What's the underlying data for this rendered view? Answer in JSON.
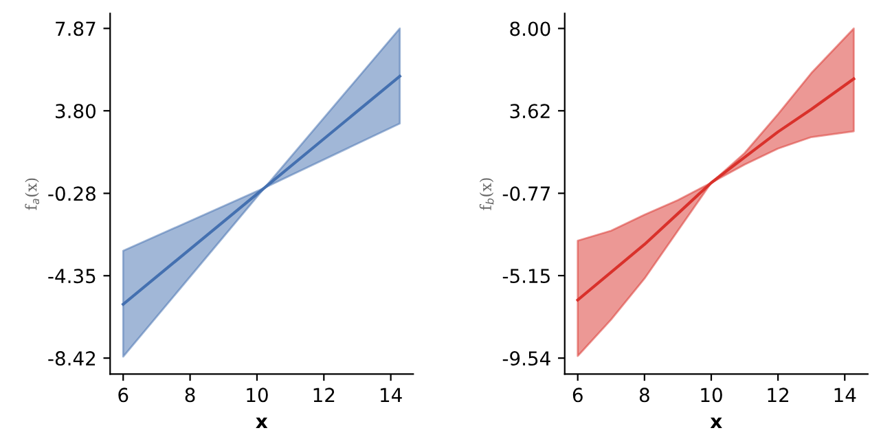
{
  "chart_data": [
    {
      "type": "line",
      "xlabel": "x",
      "ylabel": "f$_{a}$(x)",
      "xlim": [
        5.61,
        14.67
      ],
      "xticks": [
        6,
        8,
        10,
        12,
        14
      ],
      "ylim": [
        -9.21,
        8.61
      ],
      "yticks": [
        {
          "value": 7.87,
          "label": "7.87"
        },
        {
          "value": 3.8,
          "label": "3.80"
        },
        {
          "value": -0.28,
          "label": "-0.28"
        },
        {
          "value": -4.35,
          "label": "-4.35"
        },
        {
          "value": -8.42,
          "label": "-8.42"
        }
      ],
      "grid": false,
      "legend": false,
      "series": [
        {
          "color": "#4470b0",
          "x": [
            6,
            10.23,
            14.27
          ],
          "values": [
            -5.76,
            0.0,
            5.51
          ],
          "lower": [
            -8.35,
            0.0,
            3.17
          ],
          "upper": [
            -3.12,
            0.0,
            7.87
          ]
        }
      ]
    },
    {
      "type": "line",
      "xlabel": "x",
      "ylabel": "f$_{b}$(x)",
      "xlim": [
        5.61,
        14.69
      ],
      "xticks": [
        6,
        8,
        10,
        12,
        14
      ],
      "ylim": [
        -10.39,
        8.8
      ],
      "yticks": [
        {
          "value": 8.0,
          "label": "8.00"
        },
        {
          "value": 3.62,
          "label": "3.62"
        },
        {
          "value": -0.77,
          "label": "-0.77"
        },
        {
          "value": -5.15,
          "label": "-5.15"
        },
        {
          "value": -9.54,
          "label": "-9.54"
        }
      ],
      "grid": false,
      "legend": false,
      "series": [
        {
          "color": "#d9312b",
          "x": [
            6,
            7,
            8,
            9,
            10,
            11,
            12,
            13,
            14.27
          ],
          "values": [
            -6.45,
            -4.97,
            -3.49,
            -1.85,
            -0.21,
            1.15,
            2.5,
            3.7,
            5.32
          ],
          "lower": [
            -9.43,
            -7.49,
            -5.31,
            -2.76,
            -0.21,
            0.76,
            1.61,
            2.22,
            2.53
          ],
          "upper": [
            -3.29,
            -2.76,
            -1.91,
            -1.13,
            -0.21,
            1.37,
            3.44,
            5.63,
            8.0
          ]
        }
      ]
    }
  ]
}
